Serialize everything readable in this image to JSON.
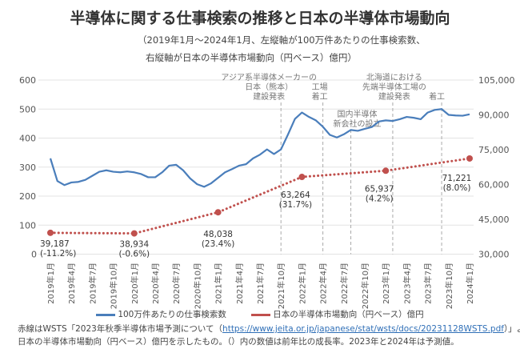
{
  "title": "半導体に関する仕事検索の推移と日本の半導体市場動向",
  "subtitle1": "（2019年1月～2024年1月、左縦軸が100万件あたりの仕事検索数、",
  "subtitle2": "右縦軸が日本の半導体市場動向（円ベース）億円）",
  "chart_data": {
    "type": "line",
    "ylim_left": [
      0,
      600
    ],
    "yticks_left": [
      "0",
      "100",
      "200",
      "300",
      "400",
      "500",
      "600"
    ],
    "ylim_right": [
      30000,
      105000
    ],
    "yticks_right": [
      "30,000",
      "45,000",
      "60,000",
      "75,000",
      "90,000",
      "105,000"
    ],
    "x_start": "2019-01",
    "x_end": "2024-01",
    "xtick_labels": [
      "2019年1月",
      "2019年4月",
      "2019年7月",
      "2019年10月",
      "2020年1月",
      "2020年4月",
      "2020年7月",
      "2020年10月",
      "2021年1月",
      "2021年4月",
      "2021年7月",
      "2021年10月",
      "2022年1月",
      "2022年4月",
      "2022年7月",
      "2022年10月",
      "2023年1月",
      "2023年4月",
      "2023年7月",
      "2023年10月",
      "2024年1月"
    ],
    "grid": true,
    "legend_position": "bottom",
    "series": [
      {
        "name": "100万件あたりの仕事検索数",
        "axis": "left",
        "color": "#4a7ebb",
        "style": "solid",
        "values": [
          330,
          252,
          238,
          247,
          249,
          256,
          270,
          284,
          289,
          284,
          282,
          285,
          282,
          276,
          265,
          265,
          282,
          305,
          308,
          289,
          261,
          241,
          232,
          244,
          263,
          282,
          293,
          305,
          310,
          330,
          343,
          361,
          345,
          361,
          412,
          466,
          488,
          473,
          461,
          439,
          411,
          402,
          413,
          428,
          425,
          432,
          438,
          457,
          461,
          459,
          465,
          473,
          470,
          465,
          488,
          497,
          500,
          480,
          478,
          477,
          482
        ]
      },
      {
        "name": "日本の半導体市場動向（円ベース）億円",
        "axis": "right",
        "color": "#c0504d",
        "style": "dotted",
        "x": [
          "2019年1月",
          "2020年1月",
          "2021年1月",
          "2022年1月",
          "2023年1月",
          "2024年1月"
        ],
        "values": [
          39187,
          38934,
          48038,
          63264,
          65937,
          71221
        ],
        "labels": [
          "39,187",
          "38,934",
          "48,038",
          "63,264",
          "65,937",
          "71,221"
        ],
        "growth": [
          "(-11.2%)",
          "(-0.6%)",
          "(23.4%)",
          "(31.7%)",
          "(4.2%)",
          "(8.0%)"
        ]
      }
    ],
    "annotations": [
      {
        "month": "2021-10",
        "lines": [
          "アジア系半導体メーカーの",
          "日本（熊本）",
          "建設発表"
        ]
      },
      {
        "month": "2022-04",
        "lines": [
          "工場",
          "着工"
        ]
      },
      {
        "month": "2022-08",
        "lines": [
          "国内半導体",
          "新会社の設立"
        ]
      },
      {
        "month": "2023-02",
        "lines": [
          "北海道における",
          "先端半導体工場の",
          "建設発表"
        ]
      },
      {
        "month": "2023-09",
        "lines": [
          "着工"
        ]
      }
    ]
  },
  "note": {
    "line1_pre": "赤線はWSTS「2023年秋季半導体市場予測について（",
    "link": "https://www.jeita.or.jp/japanese/stat/wsts/docs/20231128WSTS.pdf",
    "line1_post": "）」より、",
    "line2": "日本の半導体市場動向（円ベース）億円を示したもの。（）内の数値は前年比の成長率。2023年と2024年は予測値。"
  }
}
